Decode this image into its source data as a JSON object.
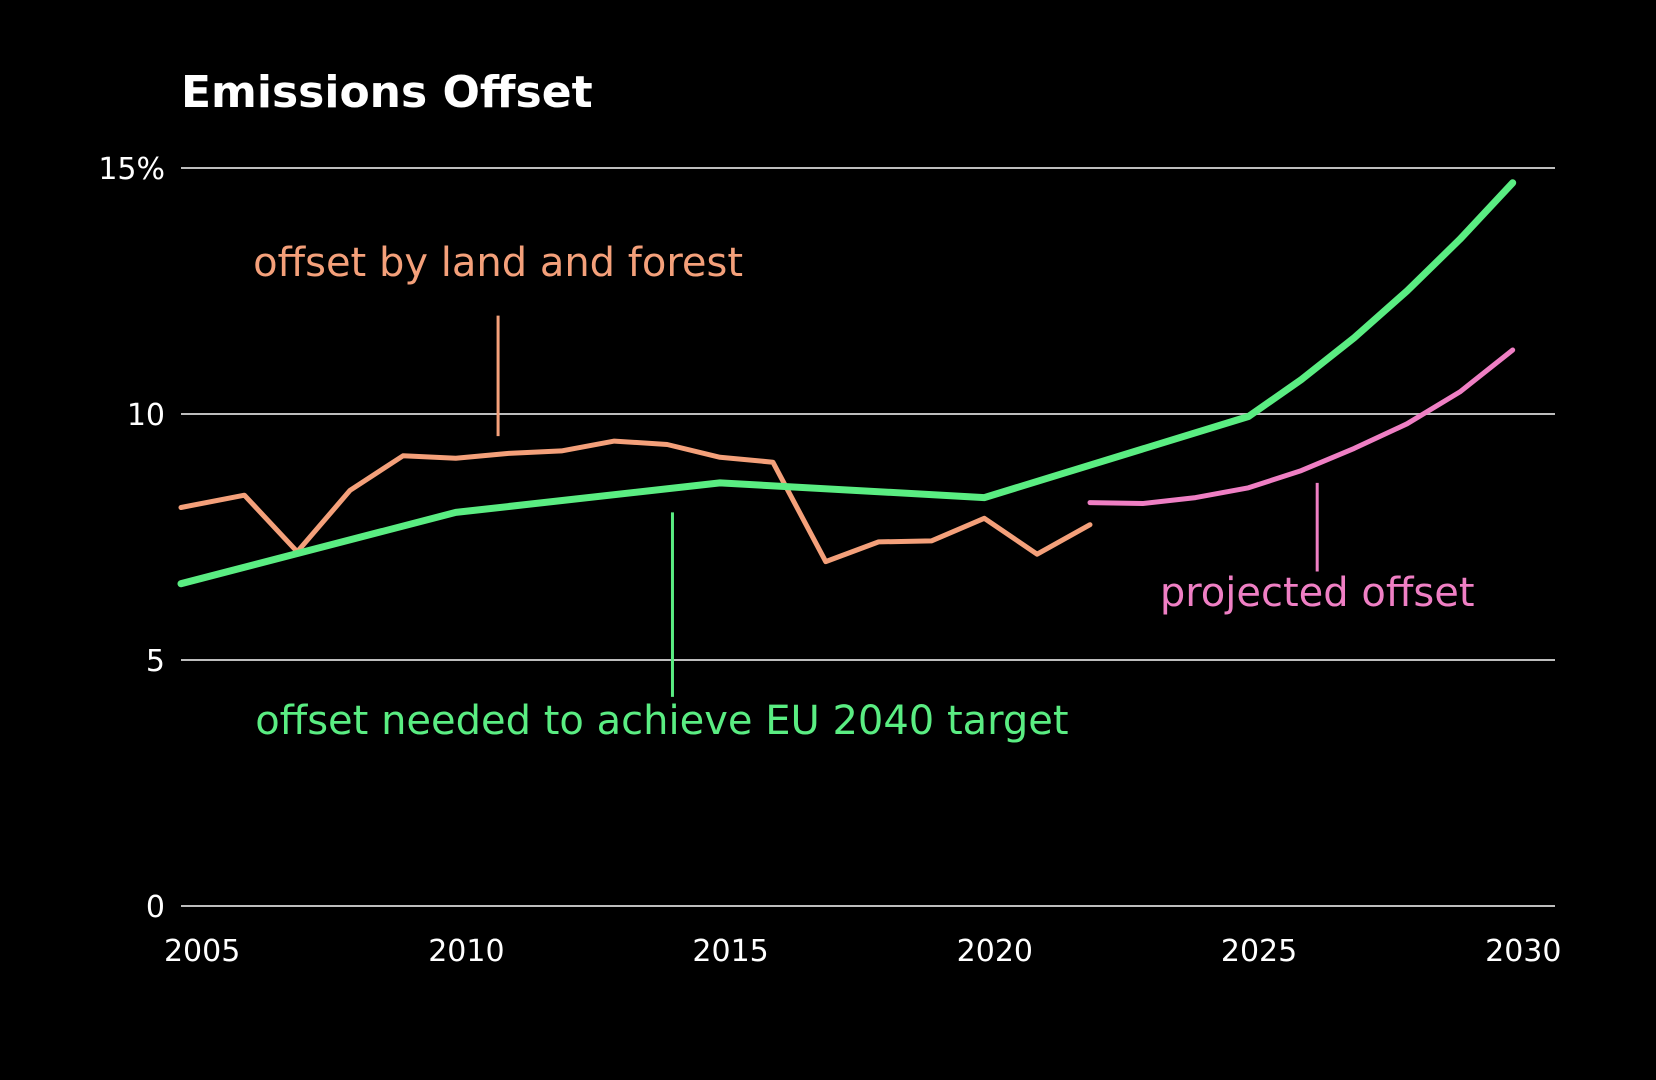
{
  "chart_data": {
    "type": "line",
    "title": "Emissions Offset",
    "xlabel": "",
    "ylabel": "",
    "xlim": [
      2004.6,
      2030.6
    ],
    "ylim": [
      0,
      15
    ],
    "grid": true,
    "x_ticks": [
      {
        "value": 2005,
        "label": "2005"
      },
      {
        "value": 2010,
        "label": "2010"
      },
      {
        "value": 2015,
        "label": "2015"
      },
      {
        "value": 2020,
        "label": "2020"
      },
      {
        "value": 2025,
        "label": "2025"
      },
      {
        "value": 2030,
        "label": "2030"
      }
    ],
    "y_ticks": [
      {
        "value": 0,
        "label": "0"
      },
      {
        "value": 5,
        "label": "5"
      },
      {
        "value": 10,
        "label": "10"
      },
      {
        "value": 15,
        "label": "15%"
      }
    ],
    "series": [
      {
        "key": "land",
        "color": "#f4a07a",
        "points": [
          [
            2004.6,
            8.1
          ],
          [
            2005.8,
            8.35
          ],
          [
            2006.8,
            7.2
          ],
          [
            2007.8,
            8.45
          ],
          [
            2008.8,
            9.15
          ],
          [
            2009.8,
            9.1
          ],
          [
            2010.8,
            9.2
          ],
          [
            2011.8,
            9.25
          ],
          [
            2012.8,
            9.45
          ],
          [
            2013.8,
            9.38
          ],
          [
            2014.8,
            9.12
          ],
          [
            2015.8,
            9.02
          ],
          [
            2016.8,
            7.0
          ],
          [
            2017.8,
            7.4
          ],
          [
            2018.8,
            7.42
          ],
          [
            2019.8,
            7.88
          ],
          [
            2020.8,
            7.15
          ],
          [
            2021.8,
            7.75
          ]
        ]
      },
      {
        "key": "needed",
        "color": "#5aed82",
        "points": [
          [
            2004.6,
            6.55
          ],
          [
            2009.8,
            8.0
          ],
          [
            2014.8,
            8.6
          ],
          [
            2019.8,
            8.3
          ],
          [
            2024.8,
            9.95
          ],
          [
            2025.8,
            10.7
          ],
          [
            2026.8,
            11.55
          ],
          [
            2027.8,
            12.5
          ],
          [
            2028.8,
            13.55
          ],
          [
            2029.8,
            14.7
          ]
        ]
      },
      {
        "key": "projected",
        "color": "#ef7fc4",
        "points": [
          [
            2021.8,
            8.2
          ],
          [
            2022.8,
            8.18
          ],
          [
            2023.8,
            8.3
          ],
          [
            2024.8,
            8.5
          ],
          [
            2025.8,
            8.85
          ],
          [
            2026.8,
            9.3
          ],
          [
            2027.8,
            9.8
          ],
          [
            2028.8,
            10.45
          ],
          [
            2029.8,
            11.3
          ]
        ]
      }
    ],
    "annotations": [
      {
        "series": "land",
        "text": "offset by land and forest",
        "color": "#f4a07a",
        "x": 2010.6,
        "y": 9.55,
        "leader": [
          9.55,
          12.0
        ]
      },
      {
        "series": "needed",
        "text": "offset needed to achieve EU 2040 target",
        "color": "#5aed82",
        "x": 2013.9,
        "y": 8.0,
        "leader": [
          4.25,
          8.0
        ]
      },
      {
        "series": "projected",
        "text": "projected offset",
        "color": "#ef7fc4",
        "x": 2026.1,
        "y": 8.6,
        "leader": [
          6.8,
          8.6
        ]
      }
    ]
  }
}
